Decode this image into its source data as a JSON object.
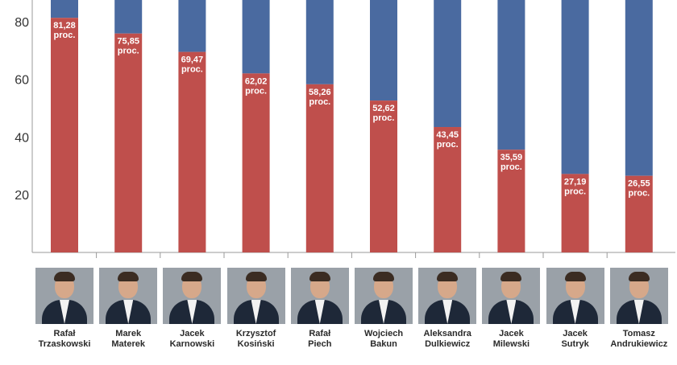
{
  "chart_data": {
    "type": "bar",
    "stacked": true,
    "categories": [
      "Rafał Trzaskowski",
      "Marek Materek",
      "Jacek Karnowski",
      "Krzysztof Kosiński",
      "Rafał Piech",
      "Wojciech Bakun",
      "Aleksandra Dulkiewicz",
      "Jacek Milewski",
      "Jacek Sutryk",
      "Tomasz Andrukiewicz"
    ],
    "series": [
      {
        "values": [
          81.28,
          75.85,
          69.47,
          62.02,
          58.26,
          52.62,
          43.45,
          35.59,
          27.19,
          26.55
        ],
        "color": "#bf4f4c"
      },
      {
        "values": [
          18.72,
          24.15,
          30.53,
          37.98,
          41.74,
          47.38,
          56.55,
          64.41,
          72.81,
          73.45
        ],
        "color": "#4a6aa0"
      }
    ],
    "data_labels": [
      [
        "81,28",
        "proc."
      ],
      [
        "75,85",
        "proc."
      ],
      [
        "69,47",
        "proc."
      ],
      [
        "62,02",
        "proc."
      ],
      [
        "58,26",
        "proc."
      ],
      [
        "52,62",
        "proc."
      ],
      [
        "43,45",
        "proc."
      ],
      [
        "35,59",
        "proc."
      ],
      [
        "27,19",
        "proc."
      ],
      [
        "26,55",
        "proc."
      ]
    ],
    "yticks": [
      "20",
      "40",
      "60",
      "80"
    ],
    "ytick_values": [
      20,
      40,
      60,
      80
    ],
    "ylim": [
      0,
      100
    ],
    "grid": false,
    "title": "",
    "xlabel": "",
    "ylabel": ""
  },
  "candidates": [
    {
      "first": "Rafał",
      "last": "Trzaskowski"
    },
    {
      "first": "Marek",
      "last": "Materek"
    },
    {
      "first": "Jacek",
      "last": "Karnowski"
    },
    {
      "first": "Krzysztof",
      "last": "Kosiński"
    },
    {
      "first": "Rafał",
      "last": "Piech"
    },
    {
      "first": "Wojciech",
      "last": "Bakun"
    },
    {
      "first": "Aleksandra",
      "last": "Dulkiewicz"
    },
    {
      "first": "Jacek",
      "last": "Milewski"
    },
    {
      "first": "Jacek",
      "last": "Sutryk"
    },
    {
      "first": "Tomasz",
      "last": "Andrukiewicz"
    }
  ],
  "colors": {
    "yes": "#bf4f4c",
    "no": "#4a6aa0",
    "axis": "#9a9a9a"
  }
}
